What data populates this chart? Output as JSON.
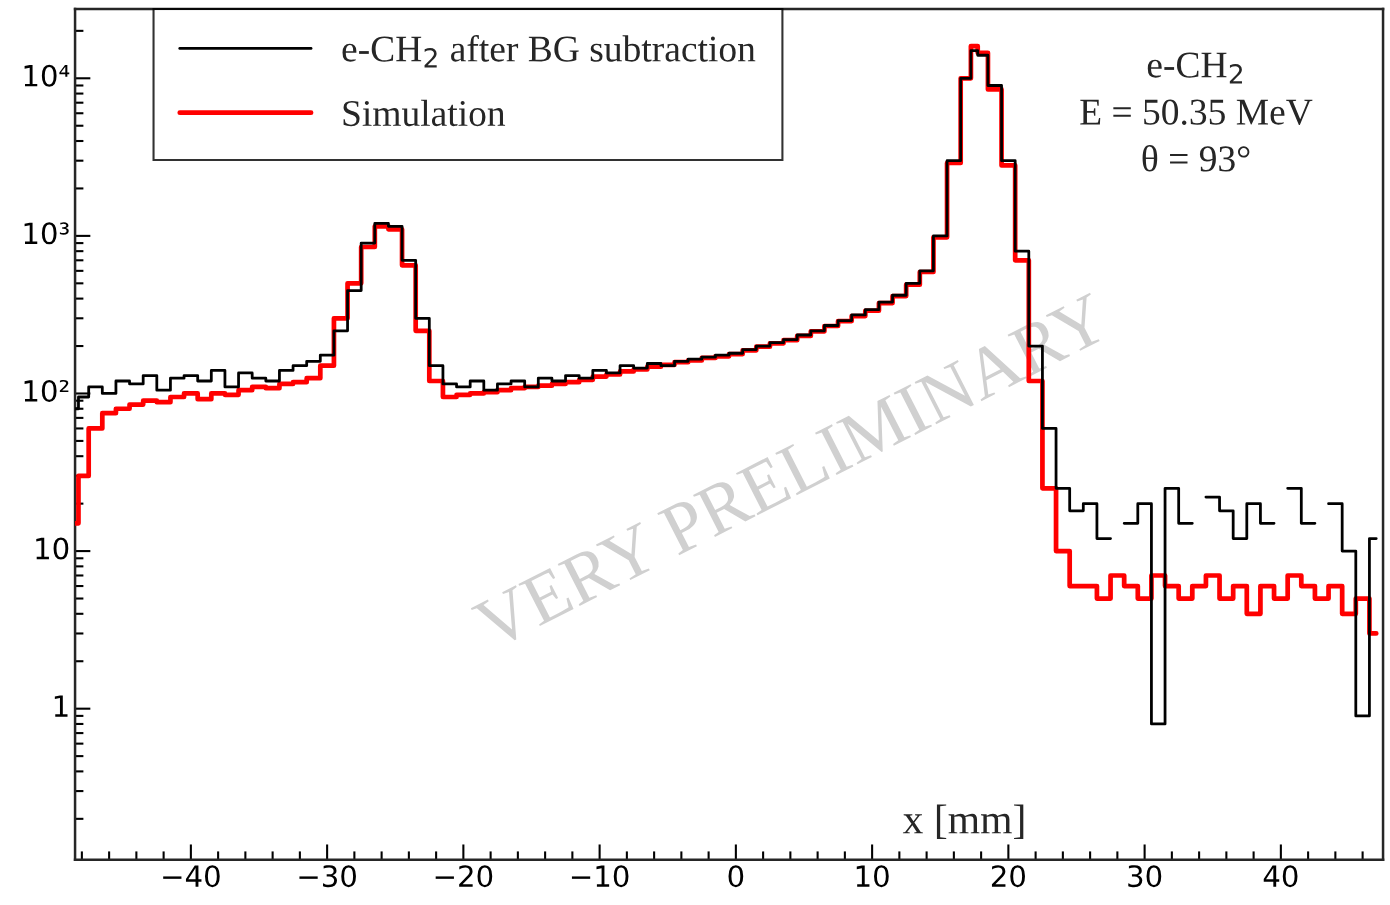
{
  "chart_data": {
    "type": "step",
    "xlabel": "x [mm]",
    "xlim": [
      -48.5,
      47.5
    ],
    "ylim": [
      0.11,
      27500
    ],
    "log": true,
    "xticks": [
      {
        "value": -40,
        "label": "−40"
      },
      {
        "value": -30,
        "label": "−30"
      },
      {
        "value": -20,
        "label": "−20"
      },
      {
        "value": -10,
        "label": "−10"
      },
      0,
      10,
      20,
      30,
      40
    ],
    "yticks": [
      1,
      10,
      {
        "value": 100,
        "label": "10²"
      },
      {
        "value": 1000,
        "label": "10³"
      },
      {
        "value": 10000,
        "label": "10⁴"
      }
    ],
    "legend": "top left",
    "grid": false,
    "annotations": [
      "e-CH$_{2}$",
      "E = 50.35 MeV",
      "θ = 93°",
      "VERY PRELIMINARY"
    ],
    "series": [
      {
        "name": "e-CH$_{2}$ after BG subtraction",
        "color": "#000000",
        "x": [
          -48.5,
          -48,
          -47,
          -46,
          -45,
          -44,
          -43,
          -42,
          -41,
          -40,
          -39,
          -38,
          -37,
          -36,
          -35,
          -34,
          -33,
          -32,
          -31,
          -30,
          -29,
          -28,
          -27,
          -26,
          -25,
          -24,
          -23,
          -22,
          -21,
          -20,
          -19,
          -18,
          -17,
          -16,
          -15,
          -14,
          -13,
          -12,
          -11,
          -10,
          -9,
          -8,
          -7,
          -6,
          -5,
          -4,
          -3,
          -2,
          -1,
          0,
          1,
          2,
          3,
          4,
          5,
          6,
          7,
          8,
          9,
          10,
          11,
          12,
          13,
          14,
          15,
          16,
          17,
          17.5,
          18,
          19,
          20,
          21,
          22,
          23,
          24,
          25,
          26,
          27,
          28,
          29,
          30,
          31,
          32,
          33,
          34,
          35,
          36,
          37,
          38,
          39,
          40,
          41,
          42,
          43,
          44,
          45,
          46,
          47
        ],
        "values": [
          80,
          95,
          110,
          100,
          120,
          115,
          130,
          105,
          125,
          130,
          120,
          140,
          110,
          135,
          125,
          120,
          140,
          150,
          160,
          175,
          250,
          450,
          900,
          1200,
          1150,
          700,
          300,
          150,
          115,
          110,
          120,
          105,
          115,
          120,
          110,
          125,
          120,
          130,
          125,
          140,
          135,
          150,
          145,
          155,
          150,
          160,
          165,
          170,
          175,
          180,
          190,
          200,
          210,
          220,
          235,
          250,
          270,
          290,
          315,
          340,
          380,
          420,
          500,
          600,
          1000,
          3000,
          10000,
          15000,
          14000,
          9000,
          3000,
          800,
          200,
          60,
          25,
          18,
          20,
          12,
          null,
          15,
          20,
          0.8,
          25,
          15,
          null,
          22,
          18,
          12,
          20,
          15,
          null,
          25,
          15,
          null,
          20,
          10,
          0.9,
          12
        ]
      },
      {
        "name": "Simulation",
        "color": "#ff0000",
        "x": [
          -48.5,
          -48,
          -47,
          -46,
          -45,
          -44,
          -43,
          -42,
          -41,
          -40,
          -39,
          -38,
          -37,
          -36,
          -35,
          -34,
          -33,
          -32,
          -31,
          -30,
          -29,
          -28,
          -27,
          -26,
          -25,
          -24,
          -23,
          -22,
          -21,
          -20,
          -19,
          -18,
          -17,
          -16,
          -15,
          -14,
          -13,
          -12,
          -11,
          -10,
          -9,
          -8,
          -7,
          -6,
          -5,
          -4,
          -3,
          -2,
          -1,
          0,
          1,
          2,
          3,
          4,
          5,
          6,
          7,
          8,
          9,
          10,
          11,
          12,
          13,
          14,
          15,
          16,
          17,
          17.5,
          18,
          19,
          20,
          21,
          22,
          23,
          24,
          25,
          26,
          27,
          28,
          29,
          30,
          31,
          32,
          33,
          34,
          35,
          36,
          37,
          38,
          39,
          40,
          41,
          42,
          43,
          44,
          45,
          46,
          47
        ],
        "values": [
          15,
          30,
          60,
          75,
          80,
          85,
          90,
          88,
          95,
          100,
          92,
          100,
          98,
          105,
          110,
          108,
          115,
          118,
          125,
          150,
          300,
          500,
          850,
          1150,
          1100,
          650,
          250,
          120,
          95,
          98,
          100,
          102,
          105,
          108,
          110,
          112,
          115,
          118,
          122,
          128,
          132,
          138,
          142,
          148,
          152,
          158,
          162,
          168,
          172,
          178,
          188,
          198,
          208,
          218,
          232,
          248,
          268,
          288,
          310,
          335,
          375,
          415,
          490,
          590,
          980,
          2900,
          10000,
          16000,
          14500,
          8500,
          2800,
          700,
          120,
          25,
          10,
          6,
          6,
          5,
          7,
          6,
          5,
          7,
          6,
          5,
          6,
          7,
          5,
          6,
          4,
          6,
          5,
          7,
          6,
          5,
          6,
          4,
          5,
          3
        ]
      }
    ]
  }
}
